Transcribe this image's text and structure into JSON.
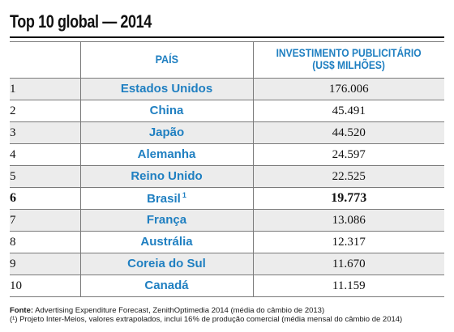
{
  "title": "Top 10 global — 2014",
  "headers": {
    "rank": "",
    "country": "PAÍS",
    "investment_line1": "INVESTIMENTO PUBLICITÁRIO",
    "investment_line2": "(US$ MILHÕES)"
  },
  "rows": [
    {
      "rank": "1",
      "country": "Estados Unidos",
      "value": "176.006"
    },
    {
      "rank": "2",
      "country": "China",
      "value": "45.491"
    },
    {
      "rank": "3",
      "country": "Japão",
      "value": "44.520"
    },
    {
      "rank": "4",
      "country": "Alemanha",
      "value": "24.597"
    },
    {
      "rank": "5",
      "country": "Reino Unido",
      "value": "22.525"
    },
    {
      "rank": "6",
      "country": "Brasil",
      "footnote_mark": "1",
      "value": "19.773"
    },
    {
      "rank": "7",
      "country": "França",
      "value": "13.086"
    },
    {
      "rank": "8",
      "country": "Austrália",
      "value": "12.317"
    },
    {
      "rank": "9",
      "country": "Coreia do Sul",
      "value": "11.670"
    },
    {
      "rank": "10",
      "country": "Canadá",
      "value": "11.159"
    }
  ],
  "notes": {
    "source_label": "Fonte:",
    "source_text": " Advertising Expenditure Forecast, ZenithOptimedia 2014 (média do câmbio de 2013)",
    "footnote": "(¹) Projeto Inter-Meios, valores extrapolados, inclui 16% de produção comercial (média mensal do câmbio de 2014)"
  },
  "colors": {
    "accent_blue": "#1f7fc1",
    "row_shade": "#ececec",
    "rule": "#7a7a7a"
  }
}
